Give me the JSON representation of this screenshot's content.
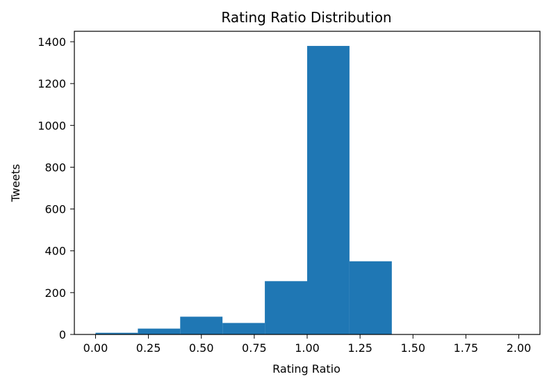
{
  "chart_data": {
    "type": "bar",
    "title": "Rating Ratio Distribution",
    "xlabel": "Rating Ratio",
    "ylabel": "Tweets",
    "bar_color": "#1f77b4",
    "xlim": [
      -0.1,
      2.1
    ],
    "ylim": [
      0,
      1450
    ],
    "x_ticks": [
      0.0,
      0.25,
      0.5,
      0.75,
      1.0,
      1.25,
      1.5,
      1.75,
      2.0
    ],
    "x_tick_labels": [
      "0.00",
      "0.25",
      "0.50",
      "0.75",
      "1.00",
      "1.25",
      "1.50",
      "1.75",
      "2.00"
    ],
    "y_ticks": [
      0,
      200,
      400,
      600,
      800,
      1000,
      1200,
      1400
    ],
    "y_tick_labels": [
      "0",
      "200",
      "400",
      "600",
      "800",
      "1000",
      "1200",
      "1400"
    ],
    "bins": [
      {
        "start": 0.0,
        "end": 0.2,
        "count": 8
      },
      {
        "start": 0.2,
        "end": 0.4,
        "count": 28
      },
      {
        "start": 0.4,
        "end": 0.6,
        "count": 85
      },
      {
        "start": 0.6,
        "end": 0.8,
        "count": 55
      },
      {
        "start": 0.8,
        "end": 1.0,
        "count": 255
      },
      {
        "start": 1.0,
        "end": 1.2,
        "count": 1380
      },
      {
        "start": 1.2,
        "end": 1.4,
        "count": 350
      },
      {
        "start": 1.4,
        "end": 1.6,
        "count": 1
      },
      {
        "start": 1.6,
        "end": 1.8,
        "count": 1
      },
      {
        "start": 1.8,
        "end": 2.0,
        "count": 1
      }
    ],
    "grid": false,
    "legend": "none"
  }
}
